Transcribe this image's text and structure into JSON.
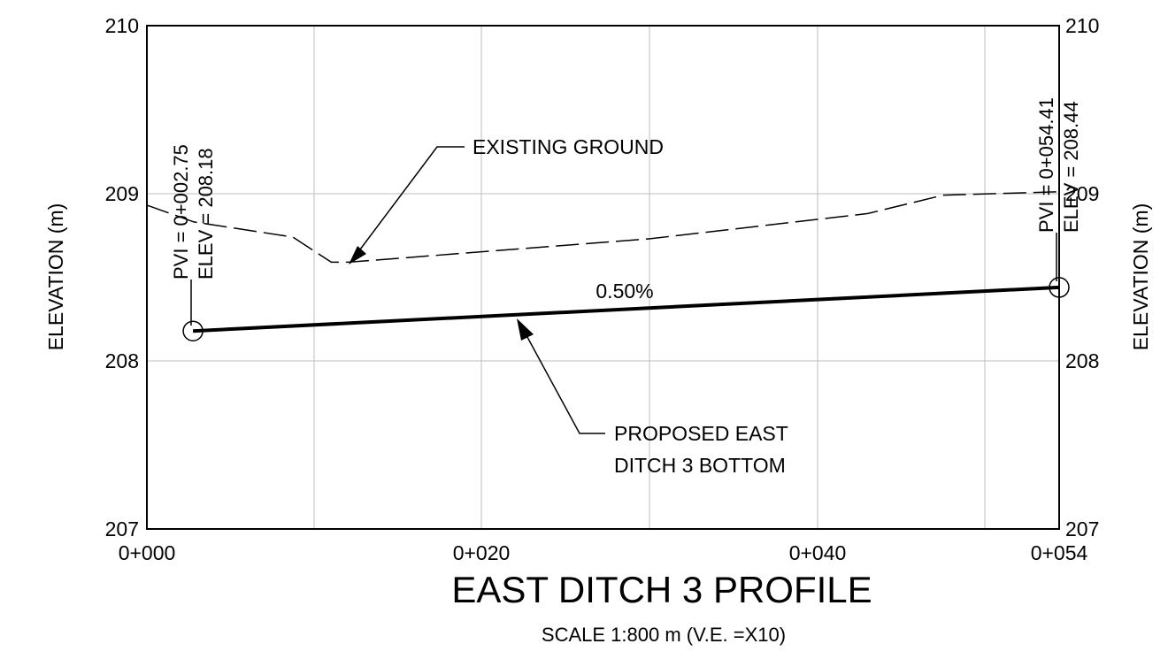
{
  "title": "EAST DITCH 3 PROFILE",
  "subtitle": "SCALE 1:800 m (V.E. =X10)",
  "axes": {
    "y_label_left": "ELEVATION (m)",
    "y_label_right": "ELEVATION (m)",
    "y_ticks": [
      "207",
      "208",
      "209",
      "210"
    ],
    "x_ticks": [
      "0+000",
      "0+020",
      "0+040",
      "0+054"
    ]
  },
  "annotations": {
    "existing_ground": "EXISTING GROUND",
    "proposed_line1": "PROPOSED EAST",
    "proposed_line2": "DITCH 3 BOTTOM",
    "grade": "0.50%",
    "pvi_start_station": "PVI = 0+002.75",
    "pvi_start_elev": "ELEV = 208.18",
    "pvi_end_station": "PVI = 0+054.41",
    "pvi_end_elev": "ELEV = 208.44"
  },
  "chart_data": {
    "type": "line",
    "title": "EAST DITCH 3 PROFILE",
    "subtitle": "SCALE 1:800 m (V.E. =X10)",
    "ylabel": "ELEVATION (m)",
    "xlim": [
      0,
      54.41
    ],
    "ylim": [
      207,
      210
    ],
    "x_tick_values": [
      0,
      20,
      40,
      54.41
    ],
    "x_tick_labels": [
      "0+000",
      "0+020",
      "0+040",
      "0+054"
    ],
    "y_tick_values": [
      207,
      208,
      209,
      210
    ],
    "grid": true,
    "series": [
      {
        "name": "EXISTING GROUND",
        "style": "dashed",
        "x": [
          0.0,
          2.8,
          8.7,
          11.0,
          12.0,
          30.0,
          43.0,
          47.5,
          54.41
        ],
        "y": [
          208.93,
          208.83,
          208.74,
          208.59,
          208.59,
          208.73,
          208.88,
          208.99,
          209.01
        ]
      },
      {
        "name": "PROPOSED EAST DITCH 3 BOTTOM",
        "style": "solid-heavy",
        "x": [
          2.75,
          54.41
        ],
        "y": [
          208.18,
          208.44
        ],
        "grade": "0.50%"
      }
    ],
    "pvis": [
      {
        "station": "0+002.75",
        "x": 2.75,
        "elev": 208.18
      },
      {
        "station": "0+054.41",
        "x": 54.41,
        "elev": 208.44
      }
    ]
  }
}
